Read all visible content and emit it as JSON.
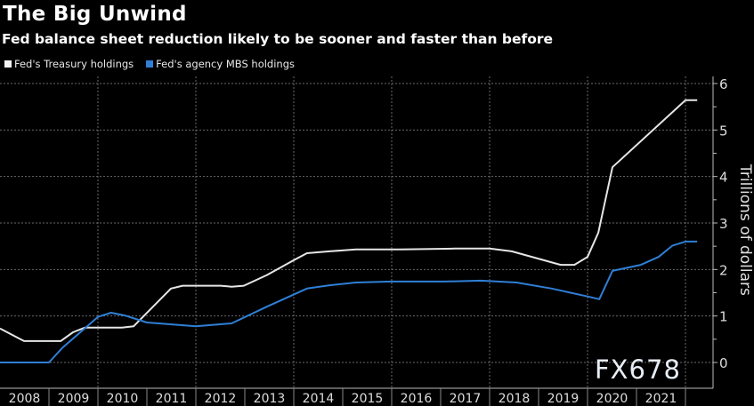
{
  "header": {
    "title": "The Big Unwind",
    "subtitle": "Fed balance sheet reduction likely to be sooner and faster than before"
  },
  "watermark": "FX678",
  "colors": {
    "background": "#000000",
    "treasury": "#e6e6e6",
    "mbs": "#2f7fd6",
    "grid": "#777777",
    "axis": "#bbbbbb"
  },
  "chart_data": {
    "type": "line",
    "title": "The Big Unwind",
    "subtitle": "Fed balance sheet reduction likely to be sooner and faster than before",
    "xlabel": "",
    "ylabel": "Trillions of dollars",
    "ylim": [
      0,
      6
    ],
    "xlim": [
      2008,
      2022.55
    ],
    "yticks": [
      0,
      1,
      2,
      3,
      4,
      5,
      6
    ],
    "yticklabels": [
      "0",
      "1",
      "2",
      "3",
      "4",
      "5",
      "6"
    ],
    "xticklabels": [
      "2008",
      "2009",
      "2010",
      "2011",
      "2012",
      "2013",
      "2014",
      "2015",
      "2016",
      "2017",
      "2018",
      "2019",
      "2020",
      "2021"
    ],
    "grid": true,
    "legend_position": "top-left",
    "series": [
      {
        "name": "Fed's Treasury holdings",
        "color": "#e6e6e6",
        "x": [
          2008.0,
          2008.49,
          2009.24,
          2009.49,
          2009.73,
          2010.49,
          2010.73,
          2011.49,
          2011.73,
          2012.51,
          2012.73,
          2012.98,
          2013.45,
          2014.0,
          2014.27,
          2014.73,
          2015.27,
          2016.18,
          2017.27,
          2018.0,
          2018.45,
          2019.45,
          2019.73,
          2020.0,
          2020.22,
          2020.51,
          2022.0,
          2022.24
        ],
        "y": [
          0.73,
          0.46,
          0.46,
          0.65,
          0.75,
          0.75,
          0.78,
          1.59,
          1.65,
          1.65,
          1.63,
          1.65,
          1.88,
          2.2,
          2.35,
          2.39,
          2.43,
          2.43,
          2.45,
          2.45,
          2.39,
          2.1,
          2.1,
          2.27,
          2.79,
          4.2,
          5.64,
          5.64
        ]
      },
      {
        "name": "Fed's agency MBS holdings",
        "color": "#2f7fd6",
        "x": [
          2008.0,
          2009.0,
          2009.27,
          2010.0,
          2010.27,
          2010.55,
          2011.0,
          2012.0,
          2012.73,
          2013.45,
          2014.27,
          2014.73,
          2015.27,
          2016.0,
          2017.09,
          2017.82,
          2018.55,
          2019.27,
          2020.0,
          2020.24,
          2020.51,
          2021.09,
          2021.45,
          2021.73,
          2022.0,
          2022.24
        ],
        "y": [
          0.0,
          0.0,
          0.31,
          0.98,
          1.07,
          1.01,
          0.86,
          0.78,
          0.84,
          1.2,
          1.59,
          1.66,
          1.72,
          1.74,
          1.74,
          1.76,
          1.72,
          1.59,
          1.42,
          1.36,
          1.97,
          2.1,
          2.27,
          2.51,
          2.6,
          2.6
        ]
      }
    ]
  }
}
